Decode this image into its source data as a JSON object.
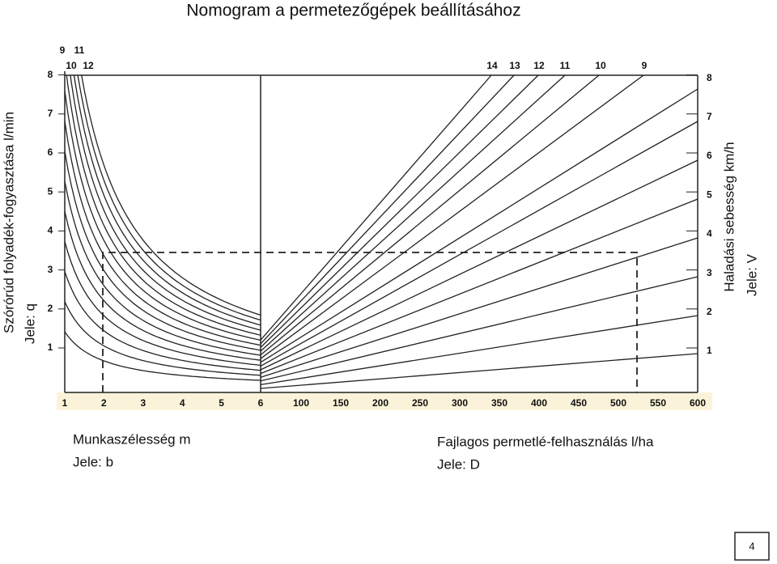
{
  "title": "Nomogram a permetezőgépek beállításához",
  "left_axis": {
    "label": "Szórórúd folyadék-fogyasztása l/min",
    "symbol": "Jele: q",
    "ticks": [
      "1",
      "2",
      "3",
      "4",
      "5",
      "6",
      "7",
      "8"
    ]
  },
  "right_axis": {
    "label": "Haladási sebesség km/h",
    "symbol": "Jele: V",
    "ticks": [
      "1",
      "2",
      "3",
      "4",
      "5",
      "6",
      "7",
      "8"
    ]
  },
  "width_axis": {
    "label": "Munkaszélesség  m",
    "symbol": "Jele: b",
    "ticks": [
      "1",
      "2",
      "3",
      "4",
      "5",
      "6"
    ]
  },
  "dose_axis": {
    "label": "Fajlagos permetlé-felhasználás l/ha",
    "symbol": "Jele: D",
    "ticks": [
      "100",
      "150",
      "200",
      "250",
      "300",
      "350",
      "400",
      "450",
      "500",
      "550",
      "600"
    ]
  },
  "left_curve_labels": {
    "top": [
      "9",
      "11"
    ],
    "bottom": [
      "10",
      "12"
    ]
  },
  "right_curve_labels": [
    "14",
    "13",
    "12",
    "11",
    "10",
    "9"
  ],
  "page_number": "4"
}
